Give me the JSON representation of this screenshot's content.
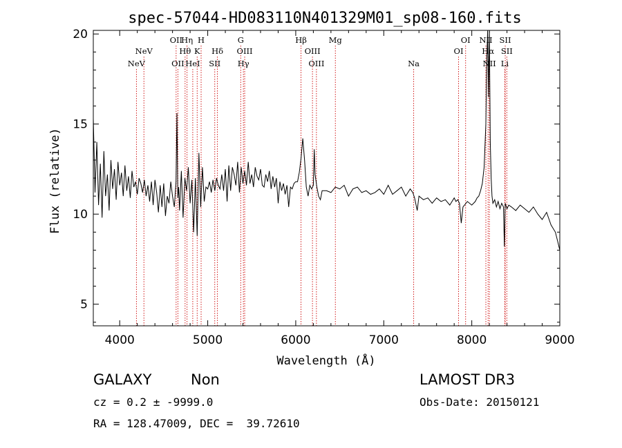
{
  "chart_data": {
    "type": "line",
    "title": "spec-57044-HD083110N401329M01_sp08-160.fits",
    "xlabel": "Wavelength (Å)",
    "ylabel": "Flux (relative)",
    "xlim": [
      3700,
      9000
    ],
    "ylim": [
      3.8,
      20.2
    ],
    "xticks": [
      4000,
      5000,
      6000,
      7000,
      8000,
      9000
    ],
    "yticks": [
      5,
      10,
      15,
      20
    ],
    "grid": false,
    "line_color": "#000000",
    "marker_color": "#cc0000",
    "series": [
      {
        "name": "flux",
        "x": [
          3700,
          3720,
          3740,
          3760,
          3780,
          3800,
          3820,
          3840,
          3860,
          3880,
          3900,
          3920,
          3940,
          3960,
          3980,
          4000,
          4020,
          4040,
          4060,
          4080,
          4100,
          4120,
          4140,
          4160,
          4180,
          4200,
          4220,
          4240,
          4260,
          4280,
          4300,
          4320,
          4340,
          4360,
          4380,
          4400,
          4420,
          4440,
          4460,
          4480,
          4500,
          4520,
          4540,
          4560,
          4580,
          4600,
          4620,
          4640,
          4650,
          4660,
          4670,
          4680,
          4700,
          4720,
          4740,
          4760,
          4780,
          4800,
          4820,
          4840,
          4860,
          4880,
          4900,
          4920,
          4940,
          4960,
          4980,
          5000,
          5020,
          5040,
          5060,
          5080,
          5100,
          5120,
          5140,
          5160,
          5180,
          5200,
          5220,
          5240,
          5260,
          5280,
          5300,
          5320,
          5340,
          5360,
          5380,
          5400,
          5420,
          5440,
          5460,
          5480,
          5500,
          5520,
          5540,
          5560,
          5580,
          5600,
          5620,
          5640,
          5660,
          5680,
          5700,
          5720,
          5740,
          5760,
          5780,
          5800,
          5820,
          5840,
          5860,
          5880,
          5900,
          5920,
          5940,
          5960,
          5980,
          6000,
          6020,
          6040,
          6060,
          6080,
          6100,
          6120,
          6140,
          6160,
          6180,
          6200,
          6210,
          6220,
          6240,
          6260,
          6280,
          6300,
          6350,
          6400,
          6450,
          6500,
          6550,
          6600,
          6650,
          6700,
          6750,
          6800,
          6850,
          6900,
          6950,
          7000,
          7050,
          7100,
          7150,
          7200,
          7250,
          7300,
          7330,
          7350,
          7380,
          7400,
          7450,
          7500,
          7550,
          7600,
          7650,
          7700,
          7750,
          7800,
          7820,
          7840,
          7860,
          7880,
          7900,
          7950,
          8000,
          8020,
          8040,
          8060,
          8080,
          8100,
          8120,
          8140,
          8160,
          8170,
          8180,
          8190,
          8200,
          8210,
          8220,
          8230,
          8240,
          8260,
          8280,
          8300,
          8320,
          8340,
          8360,
          8370,
          8380,
          8400,
          8420,
          8450,
          8500,
          8550,
          8600,
          8650,
          8700,
          8750,
          8800,
          8850,
          8900,
          8950,
          8980,
          9000
        ],
        "values": [
          15.3,
          11.2,
          14.0,
          10.5,
          12.8,
          9.8,
          13.5,
          11.0,
          12.2,
          10.2,
          13.0,
          11.4,
          12.5,
          10.8,
          12.9,
          11.6,
          12.3,
          11.0,
          12.7,
          11.3,
          12.1,
          10.9,
          12.4,
          11.5,
          11.8,
          11.1,
          12.0,
          11.7,
          11.2,
          11.9,
          11.0,
          11.6,
          10.7,
          11.8,
          10.5,
          11.9,
          11.2,
          10.1,
          11.6,
          10.4,
          11.7,
          9.9,
          11.0,
          10.6,
          11.8,
          11.0,
          10.4,
          11.8,
          15.6,
          10.9,
          11.5,
          10.2,
          12.4,
          9.8,
          12.0,
          11.3,
          12.6,
          10.6,
          11.9,
          9.0,
          12.0,
          8.8,
          13.4,
          10.4,
          12.6,
          10.7,
          11.5,
          11.4,
          11.8,
          11.2,
          11.9,
          11.3,
          12.0,
          11.6,
          11.4,
          12.2,
          11.3,
          12.5,
          10.7,
          12.7,
          11.3,
          12.6,
          12.2,
          11.6,
          12.9,
          11.2,
          12.6,
          11.7,
          12.4,
          11.6,
          12.9,
          11.7,
          12.2,
          11.5,
          12.6,
          12.1,
          11.9,
          12.5,
          11.6,
          11.5,
          12.2,
          11.8,
          12.4,
          11.4,
          12.1,
          11.5,
          12.0,
          10.6,
          11.8,
          11.3,
          11.7,
          11.1,
          11.6,
          10.4,
          11.5,
          11.4,
          11.7,
          11.8,
          11.8,
          12.3,
          13.1,
          14.2,
          13.0,
          11.5,
          11.0,
          11.6,
          11.4,
          11.6,
          13.6,
          12.2,
          11.5,
          11.0,
          10.8,
          11.3,
          11.3,
          11.2,
          11.5,
          11.4,
          11.6,
          11.0,
          11.4,
          11.5,
          11.2,
          11.3,
          11.1,
          11.2,
          11.4,
          11.1,
          11.6,
          11.1,
          11.3,
          11.5,
          11.0,
          11.4,
          11.2,
          10.9,
          10.2,
          11.0,
          10.8,
          10.9,
          10.6,
          10.9,
          10.7,
          10.8,
          10.5,
          10.9,
          10.7,
          10.8,
          10.6,
          9.5,
          10.4,
          10.7,
          10.5,
          10.6,
          10.7,
          10.9,
          11.0,
          11.3,
          11.7,
          12.6,
          15.0,
          18.5,
          20.2,
          16.5,
          20.2,
          14.0,
          12.0,
          11.0,
          10.6,
          10.8,
          10.4,
          10.7,
          10.3,
          10.6,
          10.4,
          8.2,
          10.6,
          10.3,
          10.5,
          10.4,
          10.2,
          10.5,
          10.3,
          10.1,
          10.4,
          10.0,
          9.7,
          10.1,
          9.4,
          9.0,
          8.4,
          8.0
        ]
      }
    ],
    "lines": [
      {
        "label": "NeV",
        "x": 4190,
        "row": 3
      },
      {
        "label": "NeV",
        "x": 4275,
        "row": 2
      },
      {
        "label": "OII",
        "x": 4641,
        "row": 1
      },
      {
        "label": "OII",
        "x": 4661,
        "row": 3
      },
      {
        "label": "Hη",
        "x": 4765,
        "row": 1
      },
      {
        "label": "Hθ",
        "x": 4743,
        "row": 2
      },
      {
        "label": "HeI",
        "x": 4830,
        "row": 3
      },
      {
        "label": "H",
        "x": 4925,
        "row": 1
      },
      {
        "label": "K",
        "x": 4880,
        "row": 2
      },
      {
        "label": "SII",
        "x": 5080,
        "row": 3
      },
      {
        "label": "Hδ",
        "x": 5110,
        "row": 2
      },
      {
        "label": "G",
        "x": 5375,
        "row": 1
      },
      {
        "label": "OIII",
        "x": 5420,
        "row": 2
      },
      {
        "label": "Hγ",
        "x": 5405,
        "row": 3
      },
      {
        "label": "Hβ",
        "x": 6060,
        "row": 1
      },
      {
        "label": "OIII",
        "x": 6190,
        "row": 2
      },
      {
        "label": "OIII",
        "x": 6235,
        "row": 3
      },
      {
        "label": "Mg",
        "x": 6450,
        "row": 1
      },
      {
        "label": "Na",
        "x": 7340,
        "row": 3
      },
      {
        "label": "OI",
        "x": 7850,
        "row": 2
      },
      {
        "label": "OI",
        "x": 7930,
        "row": 1
      },
      {
        "label": "NII",
        "x": 8160,
        "row": 1
      },
      {
        "label": "Hα",
        "x": 8185,
        "row": 2
      },
      {
        "label": "NII",
        "x": 8200,
        "row": 3
      },
      {
        "label": "SII",
        "x": 8380,
        "row": 1
      },
      {
        "label": "SII",
        "x": 8398,
        "row": 2
      },
      {
        "label": "Li",
        "x": 8375,
        "row": 3
      }
    ]
  },
  "info": {
    "class": "GALAXY",
    "subclass": "Non",
    "survey": "LAMOST DR3",
    "cz": "cz = 0.2 ± -9999.0",
    "obsdate": "Obs-Date: 20150121",
    "radec": "RA = 128.47009, DEC =  39.72610"
  }
}
